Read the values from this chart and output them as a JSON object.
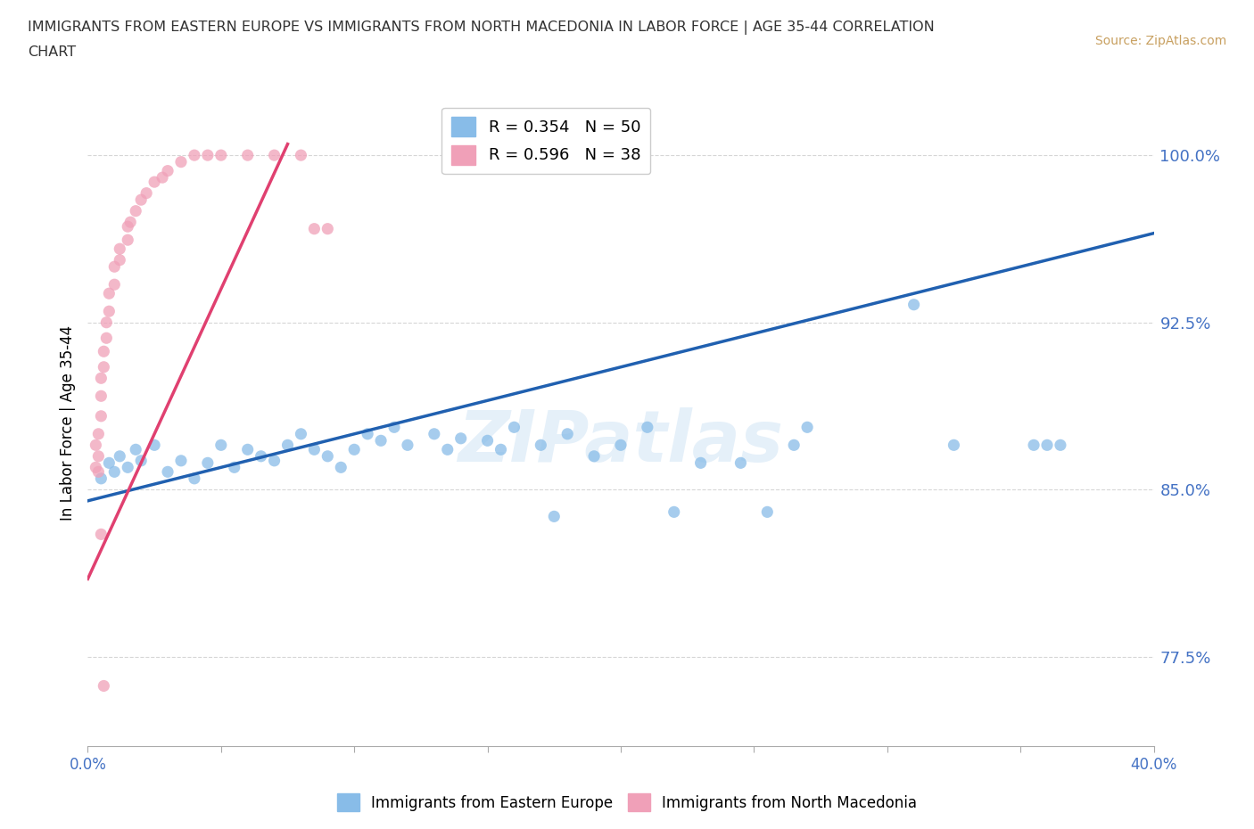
{
  "title_line1": "IMMIGRANTS FROM EASTERN EUROPE VS IMMIGRANTS FROM NORTH MACEDONIA IN LABOR FORCE | AGE 35-44 CORRELATION",
  "title_line2": "CHART",
  "source": "Source: ZipAtlas.com",
  "ylabel": "In Labor Force | Age 35-44",
  "xlim": [
    0.0,
    0.4
  ],
  "ylim": [
    0.735,
    1.025
  ],
  "xticks": [
    0.0,
    0.05,
    0.1,
    0.15,
    0.2,
    0.25,
    0.3,
    0.35,
    0.4
  ],
  "xticklabels": [
    "0.0%",
    "",
    "",
    "",
    "",
    "",
    "",
    "",
    "40.0%"
  ],
  "yticks": [
    0.775,
    0.85,
    0.925,
    1.0
  ],
  "yticklabels": [
    "77.5%",
    "85.0%",
    "92.5%",
    "100.0%"
  ],
  "blue_color": "#88bce8",
  "pink_color": "#f0a0b8",
  "blue_line_color": "#2060b0",
  "pink_line_color": "#e04070",
  "legend_R_blue": "R = 0.354",
  "legend_N_blue": "N = 50",
  "legend_R_pink": "R = 0.596",
  "legend_N_pink": "N = 38",
  "watermark": "ZIPatlas",
  "blue_scatter_x": [
    0.005,
    0.008,
    0.01,
    0.012,
    0.015,
    0.018,
    0.02,
    0.025,
    0.03,
    0.035,
    0.04,
    0.045,
    0.05,
    0.055,
    0.06,
    0.065,
    0.07,
    0.075,
    0.08,
    0.085,
    0.09,
    0.095,
    0.1,
    0.105,
    0.11,
    0.115,
    0.12,
    0.13,
    0.135,
    0.14,
    0.15,
    0.155,
    0.16,
    0.17,
    0.175,
    0.18,
    0.19,
    0.2,
    0.21,
    0.22,
    0.23,
    0.245,
    0.255,
    0.265,
    0.27,
    0.31,
    0.325,
    0.355,
    0.36,
    0.365
  ],
  "blue_scatter_y": [
    0.855,
    0.862,
    0.858,
    0.865,
    0.86,
    0.868,
    0.863,
    0.87,
    0.858,
    0.863,
    0.855,
    0.862,
    0.87,
    0.86,
    0.868,
    0.865,
    0.863,
    0.87,
    0.875,
    0.868,
    0.865,
    0.86,
    0.868,
    0.875,
    0.872,
    0.878,
    0.87,
    0.875,
    0.868,
    0.873,
    0.872,
    0.868,
    0.878,
    0.87,
    0.838,
    0.875,
    0.865,
    0.87,
    0.878,
    0.84,
    0.862,
    0.862,
    0.84,
    0.87,
    0.878,
    0.933,
    0.87,
    0.87,
    0.87,
    0.87
  ],
  "pink_scatter_x": [
    0.003,
    0.003,
    0.004,
    0.004,
    0.004,
    0.005,
    0.005,
    0.005,
    0.006,
    0.006,
    0.007,
    0.007,
    0.008,
    0.008,
    0.01,
    0.01,
    0.012,
    0.012,
    0.015,
    0.015,
    0.016,
    0.018,
    0.02,
    0.022,
    0.025,
    0.028,
    0.03,
    0.035,
    0.04,
    0.045,
    0.05,
    0.06,
    0.07,
    0.08,
    0.085,
    0.09,
    0.005,
    0.006
  ],
  "pink_scatter_y": [
    0.86,
    0.87,
    0.858,
    0.865,
    0.875,
    0.883,
    0.892,
    0.9,
    0.905,
    0.912,
    0.918,
    0.925,
    0.93,
    0.938,
    0.942,
    0.95,
    0.953,
    0.958,
    0.962,
    0.968,
    0.97,
    0.975,
    0.98,
    0.983,
    0.988,
    0.99,
    0.993,
    0.997,
    1.0,
    1.0,
    1.0,
    1.0,
    1.0,
    1.0,
    0.967,
    0.967,
    0.83,
    0.762
  ],
  "blue_trend_x": [
    0.0,
    0.4
  ],
  "blue_trend_y": [
    0.845,
    0.965
  ],
  "pink_trend_x": [
    0.0,
    0.075
  ],
  "pink_trend_y": [
    0.81,
    1.005
  ]
}
